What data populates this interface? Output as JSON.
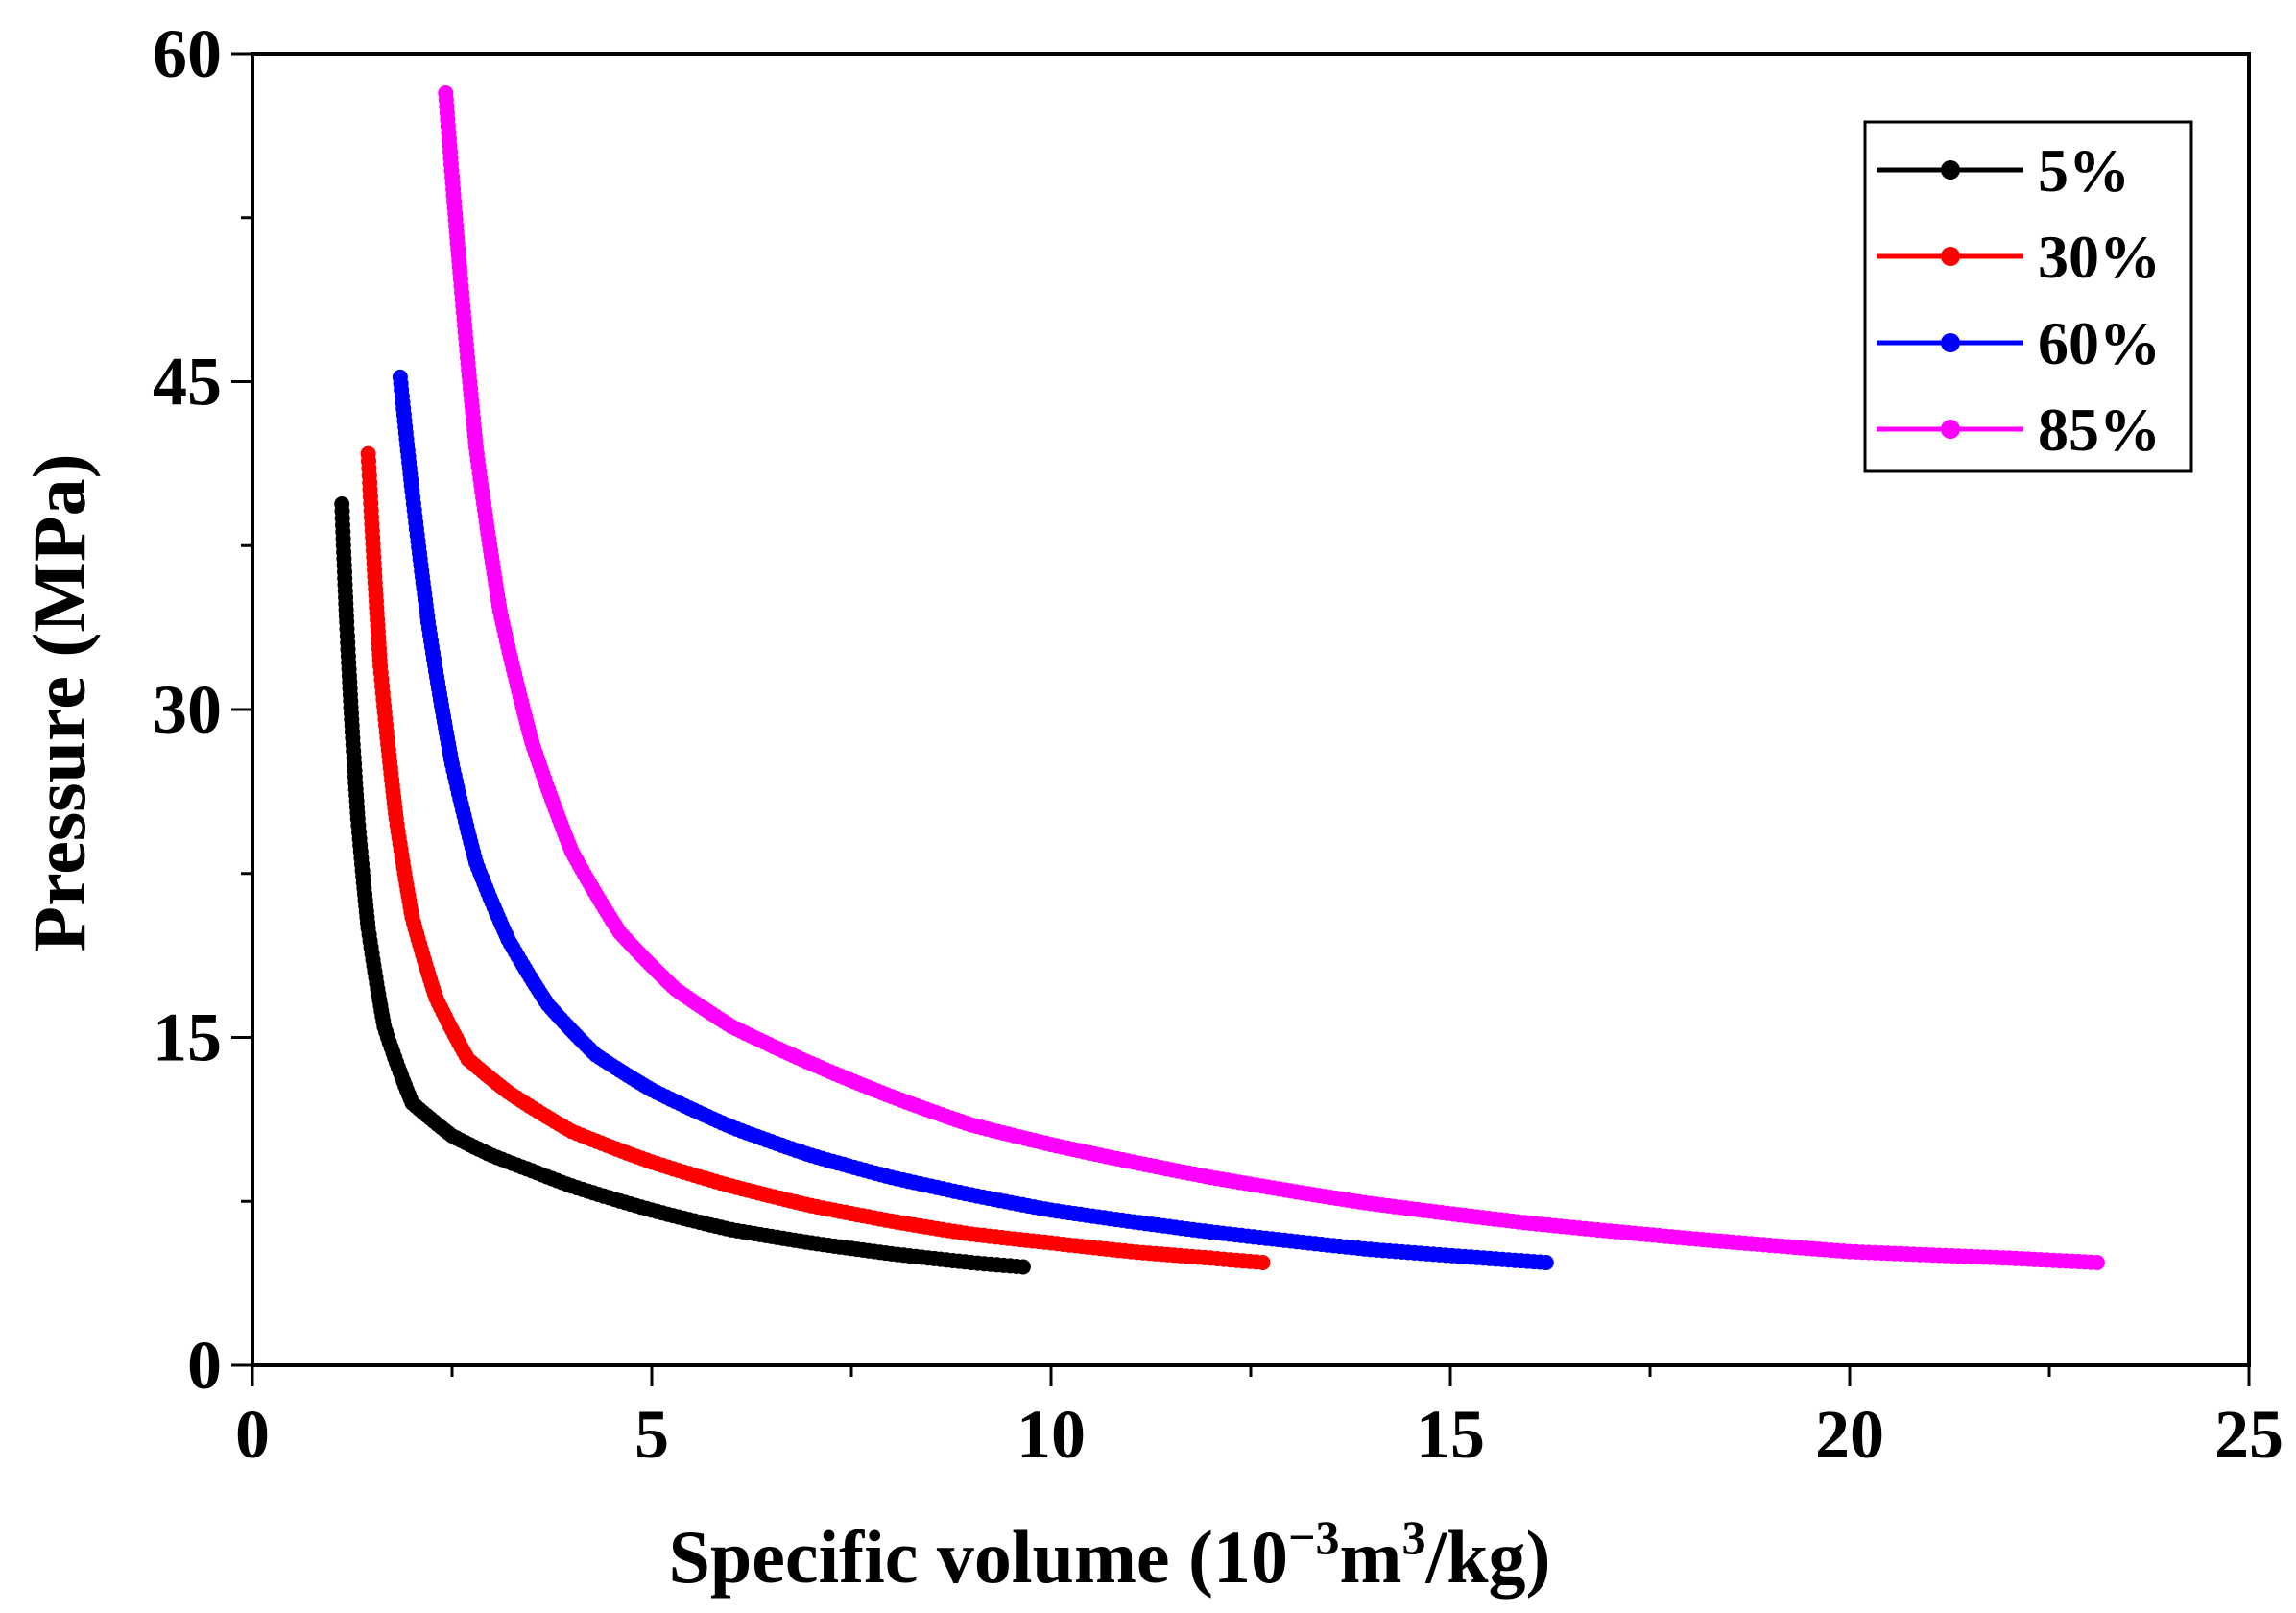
{
  "chart_data": {
    "type": "scatter",
    "xlabel_parts": [
      "Specific volume (10",
      "−3",
      "m",
      "3",
      "/kg)"
    ],
    "ylabel": "Pressure (MPa)",
    "xlim": [
      0,
      25
    ],
    "ylim": [
      0,
      60
    ],
    "xticks": [
      0,
      5,
      10,
      15,
      20,
      25
    ],
    "yticks": [
      0,
      15,
      30,
      45,
      60
    ],
    "minor_x_step": 2.5,
    "minor_y_step": 7.5,
    "legend_position": "top-right",
    "series": [
      {
        "name": "5%",
        "color": "#000000",
        "vmin": 1.12,
        "vmax": 9.65,
        "pmin": 4.5,
        "pmax": 39.4,
        "x": [
          1.12,
          1.18,
          1.25,
          1.32,
          1.45,
          1.65,
          2.0,
          2.5,
          3.0,
          3.5,
          4.0,
          5.0,
          6.0,
          7.0,
          8.0,
          9.0,
          9.65
        ],
        "y": [
          39.4,
          34.0,
          29.0,
          25.0,
          20.0,
          15.5,
          12.0,
          10.5,
          9.6,
          8.9,
          8.2,
          7.1,
          6.2,
          5.6,
          5.1,
          4.7,
          4.5
        ]
      },
      {
        "name": "30%",
        "color": "#ff0000",
        "vmin": 1.45,
        "vmax": 12.65,
        "pmin": 4.7,
        "pmax": 41.7,
        "x": [
          1.45,
          1.6,
          1.8,
          2.0,
          2.3,
          2.7,
          3.2,
          4.0,
          5.0,
          6.0,
          7.0,
          8.0,
          9.0,
          10.0,
          11.0,
          12.0,
          12.65
        ],
        "y": [
          41.7,
          32.0,
          25.0,
          20.5,
          16.8,
          14.0,
          12.5,
          10.7,
          9.3,
          8.2,
          7.3,
          6.6,
          6.0,
          5.6,
          5.2,
          4.9,
          4.7
        ]
      },
      {
        "name": "60%",
        "color": "#0000ff",
        "vmin": 1.85,
        "vmax": 16.2,
        "pmin": 4.7,
        "pmax": 45.2,
        "x": [
          1.85,
          2.0,
          2.2,
          2.5,
          2.8,
          3.2,
          3.7,
          4.3,
          5.0,
          6.0,
          7.0,
          8.0,
          9.0,
          10.0,
          12.0,
          14.0,
          16.2
        ],
        "y": [
          45.2,
          40.0,
          34.0,
          27.5,
          23.0,
          19.5,
          16.5,
          14.2,
          12.6,
          10.9,
          9.6,
          8.6,
          7.8,
          7.1,
          6.1,
          5.3,
          4.7
        ]
      },
      {
        "name": "85%",
        "color": "#ff00ff",
        "vmin": 2.42,
        "vmax": 23.1,
        "pmin": 4.7,
        "pmax": 58.2,
        "x": [
          2.42,
          2.6,
          2.8,
          3.1,
          3.5,
          4.0,
          4.6,
          5.3,
          6.0,
          7.0,
          8.0,
          9.0,
          10.0,
          12.0,
          14.0,
          16.0,
          18.0,
          20.0,
          22.0,
          23.1
        ],
        "y": [
          58.2,
          50.0,
          42.0,
          34.5,
          28.5,
          23.5,
          19.8,
          17.2,
          15.5,
          13.8,
          12.3,
          11.0,
          10.1,
          8.6,
          7.4,
          6.5,
          5.8,
          5.2,
          4.9,
          4.7
        ]
      }
    ]
  }
}
